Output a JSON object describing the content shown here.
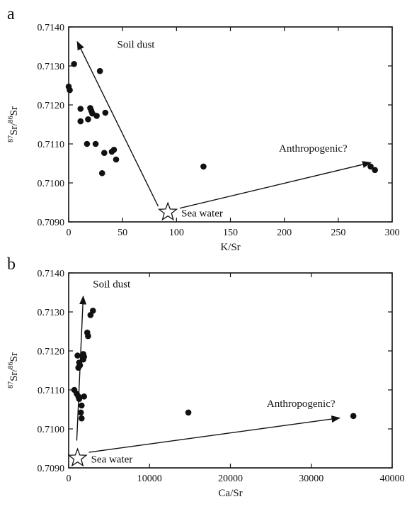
{
  "chart_data": [
    {
      "type": "scatter",
      "panel_label": "a",
      "xlabel": "K/Sr",
      "ylabel_mass1": "87",
      "ylabel_el1": "Sr/",
      "ylabel_mass2": "86",
      "ylabel_el2": "Sr",
      "xlim": [
        0,
        300
      ],
      "ylim": [
        0.709,
        0.714
      ],
      "xticks": [
        "0",
        "50",
        "100",
        "150",
        "200",
        "250",
        "300"
      ],
      "yticks": [
        "0.7090",
        "0.7100",
        "0.7110",
        "0.7120",
        "0.7130",
        "0.7140"
      ],
      "points": [
        {
          "x": 5,
          "y": 0.71305
        },
        {
          "x": 29,
          "y": 0.71287
        },
        {
          "x": 0,
          "y": 0.71247
        },
        {
          "x": 1,
          "y": 0.71238
        },
        {
          "x": 11,
          "y": 0.7119
        },
        {
          "x": 20,
          "y": 0.71192
        },
        {
          "x": 21,
          "y": 0.71185
        },
        {
          "x": 22,
          "y": 0.71178
        },
        {
          "x": 34,
          "y": 0.7118
        },
        {
          "x": 26,
          "y": 0.71172
        },
        {
          "x": 18,
          "y": 0.71163
        },
        {
          "x": 11,
          "y": 0.71158
        },
        {
          "x": 17,
          "y": 0.711
        },
        {
          "x": 25,
          "y": 0.711
        },
        {
          "x": 33,
          "y": 0.71077
        },
        {
          "x": 42,
          "y": 0.71085
        },
        {
          "x": 40,
          "y": 0.7108
        },
        {
          "x": 44,
          "y": 0.7106
        },
        {
          "x": 31,
          "y": 0.71025
        },
        {
          "x": 125,
          "y": 0.71042
        },
        {
          "x": 280,
          "y": 0.71042
        },
        {
          "x": 284,
          "y": 0.71033
        }
      ],
      "sea_water": {
        "x": 92,
        "y": 0.70925,
        "label": "Sea water"
      },
      "arrows": [
        {
          "label": "Soil dust",
          "from": [
            83,
            0.7094
          ],
          "to": [
            8,
            0.71362
          ],
          "label_at": [
            45,
            0.71346
          ],
          "anchor": "start"
        },
        {
          "label": "Anthropogenic?",
          "from": [
            103,
            0.70935
          ],
          "to": [
            280,
            0.71052
          ],
          "label_at": [
            195,
            0.7108
          ],
          "anchor": "start"
        }
      ]
    },
    {
      "type": "scatter",
      "panel_label": "b",
      "xlabel": "Ca/Sr",
      "ylabel_mass1": "87",
      "ylabel_el1": "Sr/",
      "ylabel_mass2": "86",
      "ylabel_el2": "Sr",
      "xlim": [
        0,
        40000
      ],
      "ylim": [
        0.709,
        0.714
      ],
      "xticks": [
        "0",
        "10000",
        "20000",
        "30000",
        "40000"
      ],
      "yticks": [
        "0.7090",
        "0.7100",
        "0.7110",
        "0.7120",
        "0.7130",
        "0.7140"
      ],
      "points": [
        {
          "x": 3000,
          "y": 0.71303
        },
        {
          "x": 2700,
          "y": 0.71292
        },
        {
          "x": 2300,
          "y": 0.71247
        },
        {
          "x": 2400,
          "y": 0.71238
        },
        {
          "x": 1800,
          "y": 0.71192
        },
        {
          "x": 1900,
          "y": 0.71185
        },
        {
          "x": 1800,
          "y": 0.71178
        },
        {
          "x": 1100,
          "y": 0.71188
        },
        {
          "x": 1300,
          "y": 0.7117
        },
        {
          "x": 1400,
          "y": 0.71163
        },
        {
          "x": 1200,
          "y": 0.71157
        },
        {
          "x": 700,
          "y": 0.711
        },
        {
          "x": 1000,
          "y": 0.7109
        },
        {
          "x": 1200,
          "y": 0.71083
        },
        {
          "x": 1900,
          "y": 0.71083
        },
        {
          "x": 1300,
          "y": 0.71077
        },
        {
          "x": 1600,
          "y": 0.7106
        },
        {
          "x": 1500,
          "y": 0.71042
        },
        {
          "x": 1600,
          "y": 0.71027
        },
        {
          "x": 14800,
          "y": 0.71042
        },
        {
          "x": 35200,
          "y": 0.71033
        }
      ],
      "sea_water": {
        "x": 1100,
        "y": 0.70925,
        "label": "Sea water"
      },
      "arrows": [
        {
          "label": "Soil dust",
          "from": [
            1000,
            0.7097
          ],
          "to": [
            1800,
            0.7134
          ],
          "label_at": [
            3000,
            0.71363
          ],
          "anchor": "start"
        },
        {
          "label": "Anthropogenic?",
          "from": [
            2500,
            0.7094
          ],
          "to": [
            33500,
            0.71028
          ],
          "label_at": [
            24500,
            0.71056
          ],
          "anchor": "start"
        }
      ]
    }
  ]
}
